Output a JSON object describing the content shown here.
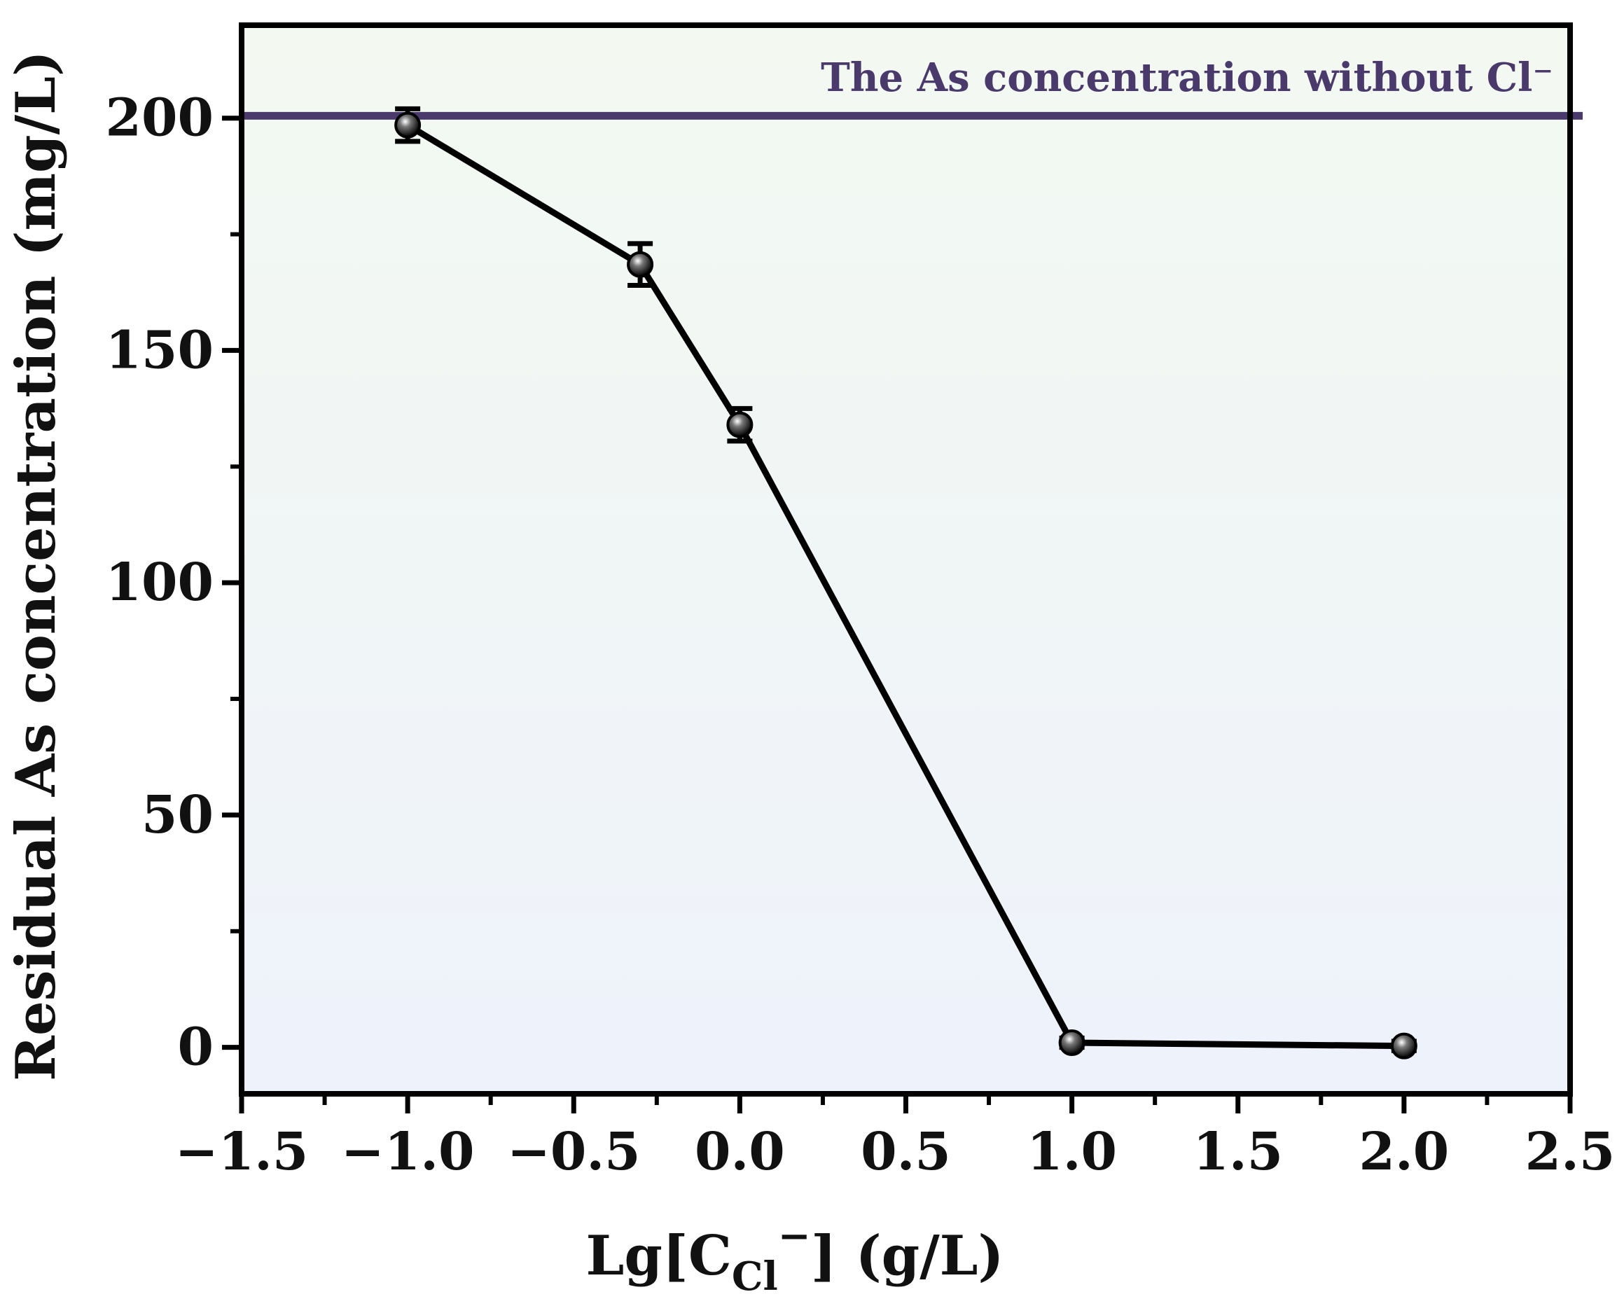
{
  "chart_data": {
    "type": "line",
    "xlabel": {
      "main": "Lg[C",
      "sub": "Cl",
      "sup": "−",
      "tail": "] (g/L)"
    },
    "ylabel": "Residual As concentration (mg/L)",
    "xlim": [
      -1.5,
      2.5
    ],
    "ylim": [
      -10,
      220
    ],
    "xticks": [
      -1.5,
      -1.0,
      -0.5,
      0.0,
      0.5,
      1.0,
      1.5,
      2.0,
      2.5
    ],
    "xtick_labels": [
      "−1.5",
      "−1.0",
      "−0.5",
      "0.0",
      "0.5",
      "1.0",
      "1.5",
      "2.0",
      "2.5"
    ],
    "yticks": [
      0,
      50,
      100,
      150,
      200
    ],
    "ytick_labels": [
      "0",
      "50",
      "100",
      "150",
      "200"
    ],
    "grid": false,
    "series": [
      {
        "x": [
          -1.0,
          -0.3,
          0.0,
          1.0,
          2.0
        ],
        "y": [
          198.5,
          168.5,
          134,
          1.0,
          0.3
        ],
        "error": [
          3.5,
          4.5,
          3.5,
          1.0,
          1.0
        ],
        "color": "#000000"
      }
    ],
    "reference_line": {
      "y": 200.5,
      "label": "The As concentration without Cl",
      "label_sup": "⁻",
      "color": "#4a3a6b"
    },
    "background_gradient": [
      "#f3f9f1",
      "#eef2fb"
    ]
  }
}
